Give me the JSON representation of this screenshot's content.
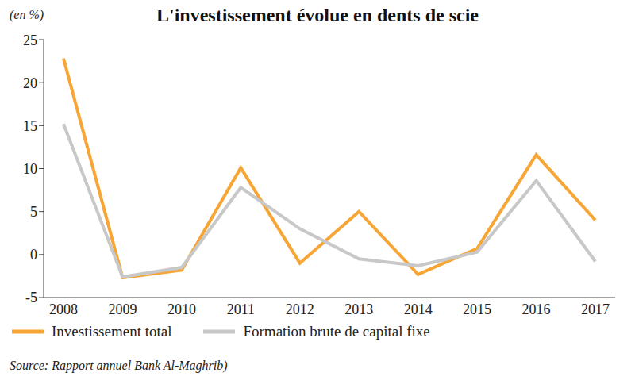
{
  "chart_data": {
    "type": "line",
    "title": "L'investissement évolue en dents de scie",
    "y_label": "(en %)",
    "source": "Source: Rapport annuel Bank Al-Maghrib)",
    "categories": [
      "2008",
      "2009",
      "2010",
      "2011",
      "2012",
      "2013",
      "2014",
      "2015",
      "2016",
      "2017"
    ],
    "series": [
      {
        "name": "Investissement total",
        "color": "#f7a535",
        "values": [
          22.8,
          -2.7,
          -1.8,
          10.1,
          -1.0,
          5.0,
          -2.3,
          0.7,
          11.6,
          4.0
        ]
      },
      {
        "name": "Formation brute de capital fixe",
        "color": "#c8c8c8",
        "values": [
          15.2,
          -2.6,
          -1.5,
          7.8,
          3.0,
          -0.5,
          -1.3,
          0.3,
          8.6,
          -0.8
        ]
      }
    ],
    "ylim": [
      -5,
      25
    ],
    "yticks": [
      -5,
      0,
      5,
      10,
      15,
      20,
      25
    ],
    "grid": false,
    "legend": "bottom",
    "marker": "none"
  }
}
